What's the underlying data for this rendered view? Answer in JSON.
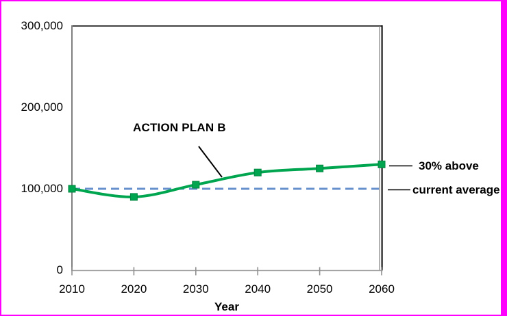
{
  "frame": {
    "border_color": "#FF00FF",
    "background_color": "#FFFFFF"
  },
  "chart_data": {
    "type": "line",
    "title": "",
    "xlabel": "Year",
    "ylabel": "",
    "xlim": [
      2010,
      2060
    ],
    "ylim": [
      0,
      300000
    ],
    "grid": false,
    "legend": "none",
    "x": [
      2010,
      2020,
      2030,
      2040,
      2050,
      2060
    ],
    "x_tick_labels": [
      "2010",
      "2020",
      "2030",
      "2040",
      "2050",
      "2060"
    ],
    "y_ticks": [
      {
        "value": 0,
        "label": "0"
      },
      {
        "value": 100000,
        "label": "100,000"
      },
      {
        "value": 200000,
        "label": "200,000"
      },
      {
        "value": 300000,
        "label": "300,000"
      }
    ],
    "series": [
      {
        "name": "ACTION PLAN B",
        "type": "smooth-line",
        "marker": "square",
        "color": "#00A550",
        "marker_edge_color": "#00843F",
        "values": [
          100000,
          90000,
          105000,
          120000,
          125000,
          130000
        ]
      },
      {
        "name": "current average",
        "type": "dashed-reference-line",
        "color": "#6690CC",
        "value": 100000
      }
    ],
    "annotations": [
      {
        "text": "ACTION PLAN B",
        "style": "bold",
        "points_to": "green series between 2030 and 2040"
      },
      {
        "text": "30% above",
        "style": "bold",
        "points_to": "green series end value at 2060"
      },
      {
        "text": "current average",
        "style": "bold",
        "points_to": "dashed reference line at 100,000"
      }
    ]
  },
  "labels": {
    "series_annotation": "ACTION PLAN B",
    "callout_top": "30% above",
    "callout_bottom": "current average",
    "x_axis_title": "Year"
  }
}
